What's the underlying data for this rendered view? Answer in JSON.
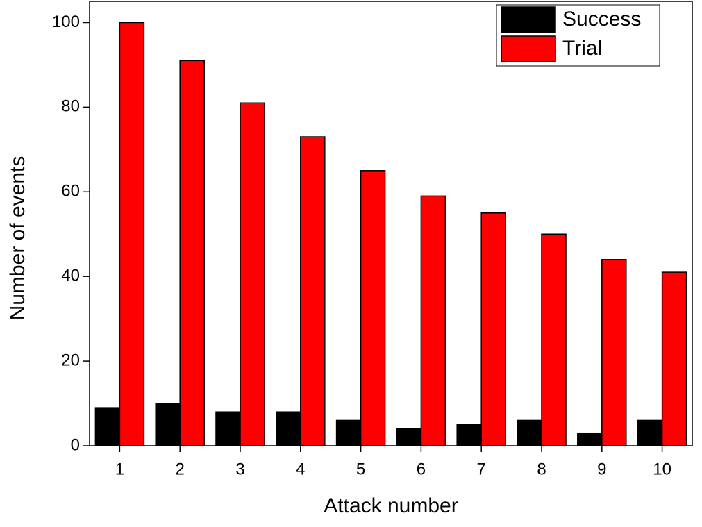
{
  "chart_data": {
    "type": "bar",
    "x_label": "Attack number",
    "y_label": "Number of events",
    "categories": [
      "1",
      "2",
      "3",
      "4",
      "5",
      "6",
      "7",
      "8",
      "9",
      "10"
    ],
    "series": [
      {
        "name": "Success",
        "color": "#000000",
        "values": [
          9,
          10,
          8,
          8,
          6,
          4,
          5,
          6,
          3,
          6
        ]
      },
      {
        "name": "Trial",
        "color": "#ff0000",
        "values": [
          100,
          91,
          81,
          73,
          65,
          59,
          55,
          50,
          44,
          41
        ]
      }
    ],
    "ylim": [
      0,
      105
    ],
    "yticks": [
      0,
      20,
      40,
      60,
      80,
      100
    ],
    "legend": "upper right"
  }
}
